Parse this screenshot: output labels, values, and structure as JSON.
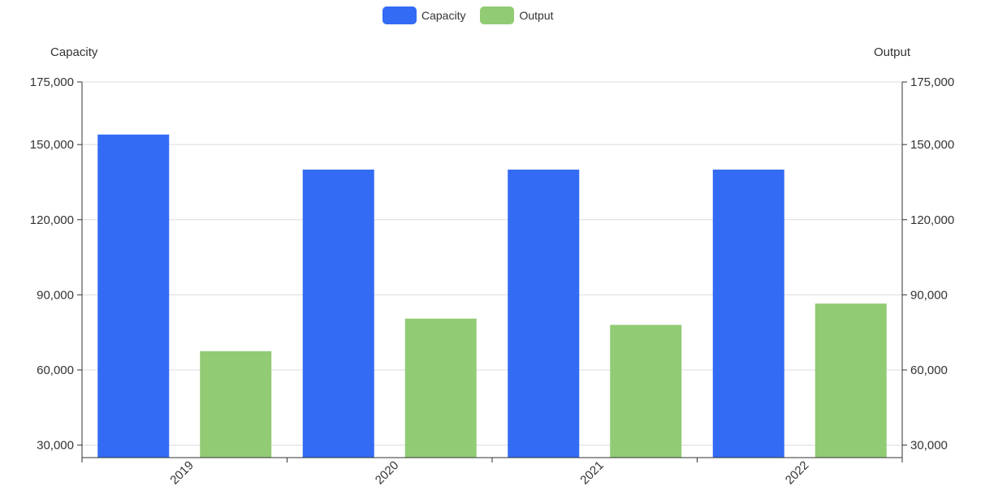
{
  "chart_data": {
    "type": "bar",
    "categories": [
      "2019",
      "2020",
      "2021",
      "2022"
    ],
    "series": [
      {
        "name": "Capacity",
        "values": [
          154000,
          140000,
          140000,
          140000
        ],
        "color": "#336BF5",
        "axis": "left"
      },
      {
        "name": "Output",
        "values": [
          67500,
          80500,
          78000,
          86500
        ],
        "color": "#91CB74",
        "axis": "right"
      }
    ],
    "y_left": {
      "label": "Capacity",
      "min": 25000,
      "max": 175000,
      "ticks": [
        30000,
        60000,
        90000,
        120000,
        150000,
        175000
      ]
    },
    "y_right": {
      "label": "Output",
      "min": 25000,
      "max": 175000,
      "ticks": [
        30000,
        60000,
        90000,
        120000,
        150000,
        175000
      ]
    },
    "grid": true,
    "legend_position": "top-center",
    "x_tick_rotation": -45
  }
}
